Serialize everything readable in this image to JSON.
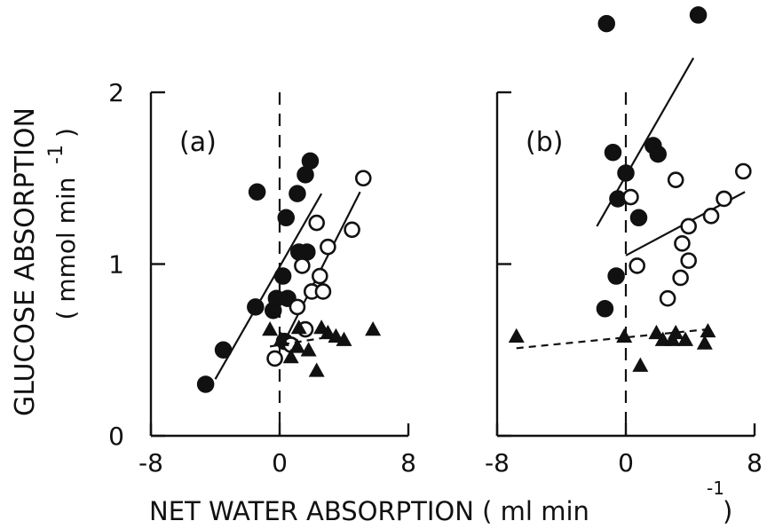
{
  "figure": {
    "ylabel_main": "GLUCOSE  ABSORPTION",
    "ylabel_unit": "( mmol  min",
    "ylabel_unit_close": ")",
    "ylabel_exp": "-1",
    "xlabel_main": "NET  WATER  ABSORPTION  ( ml  min",
    "xlabel_close": ")",
    "xlabel_exp": "-1",
    "yticks": [
      "0",
      "1",
      "2"
    ]
  },
  "chart_data": [
    {
      "type": "scatter",
      "panel_label": "(a)",
      "xlim": [
        -8,
        8
      ],
      "ylim": [
        0,
        2
      ],
      "x_ticks": [
        "-8",
        "0",
        "8"
      ],
      "y_ticks": [
        "0",
        "1",
        "2"
      ],
      "zero_line": true,
      "series": [
        {
          "marker": "filled-circle",
          "points": [
            [
              -4.6,
              0.3
            ],
            [
              -3.5,
              0.5
            ],
            [
              -1.5,
              0.75
            ],
            [
              -0.4,
              0.73
            ],
            [
              -0.2,
              0.8
            ],
            [
              0.5,
              0.8
            ],
            [
              0.2,
              0.93
            ],
            [
              1.2,
              1.07
            ],
            [
              1.7,
              1.07
            ],
            [
              0.4,
              1.27
            ],
            [
              1.1,
              1.41
            ],
            [
              1.6,
              1.52
            ],
            [
              1.9,
              1.6
            ],
            [
              -1.4,
              1.42
            ],
            [
              0.3,
              0.55
            ]
          ],
          "fit": [
            [
              -4.0,
              0.33
            ],
            [
              2.6,
              1.41
            ]
          ]
        },
        {
          "marker": "open-circle",
          "points": [
            [
              -0.3,
              0.45
            ],
            [
              0.7,
              0.53
            ],
            [
              1.1,
              0.75
            ],
            [
              1.6,
              0.62
            ],
            [
              2.0,
              0.84
            ],
            [
              2.5,
              0.93
            ],
            [
              2.7,
              0.84
            ],
            [
              1.4,
              0.99
            ],
            [
              3.0,
              1.1
            ],
            [
              2.3,
              1.24
            ],
            [
              4.5,
              1.2
            ],
            [
              5.2,
              1.5
            ]
          ],
          "fit": [
            [
              0.3,
              0.55
            ],
            [
              5.0,
              1.42
            ]
          ]
        },
        {
          "marker": "filled-triangle",
          "points": [
            [
              -0.6,
              0.62
            ],
            [
              0.1,
              0.56
            ],
            [
              0.7,
              0.46
            ],
            [
              1.1,
              0.52
            ],
            [
              1.8,
              0.5
            ],
            [
              2.6,
              0.63
            ],
            [
              3.0,
              0.6
            ],
            [
              2.3,
              0.38
            ],
            [
              3.5,
              0.58
            ],
            [
              4.0,
              0.56
            ],
            [
              5.8,
              0.62
            ],
            [
              1.2,
              0.63
            ]
          ],
          "fit": [
            [
              -0.6,
              0.52
            ],
            [
              4.0,
              0.59
            ]
          ]
        }
      ]
    },
    {
      "type": "scatter",
      "panel_label": "(b)",
      "xlim": [
        -8,
        8
      ],
      "ylim": [
        0,
        2
      ],
      "x_ticks": [
        "-8",
        "0",
        "8"
      ],
      "y_ticks": [
        "0",
        "1",
        "2"
      ],
      "zero_line": true,
      "series": [
        {
          "marker": "filled-circle",
          "points": [
            [
              -1.2,
              2.4
            ],
            [
              4.5,
              2.45
            ],
            [
              -0.8,
              1.65
            ],
            [
              0.0,
              1.53
            ],
            [
              1.7,
              1.69
            ],
            [
              2.0,
              1.64
            ],
            [
              -0.5,
              1.38
            ],
            [
              0.8,
              1.27
            ],
            [
              -0.6,
              0.93
            ],
            [
              -1.3,
              0.74
            ]
          ],
          "fit": [
            [
              -1.8,
              1.22
            ],
            [
              4.2,
              2.2
            ]
          ]
        },
        {
          "marker": "open-circle",
          "points": [
            [
              0.3,
              1.39
            ],
            [
              3.1,
              1.49
            ],
            [
              7.3,
              1.54
            ],
            [
              6.1,
              1.38
            ],
            [
              5.3,
              1.28
            ],
            [
              3.9,
              1.22
            ],
            [
              3.5,
              1.12
            ],
            [
              0.7,
              0.99
            ],
            [
              3.9,
              1.02
            ],
            [
              3.4,
              0.92
            ],
            [
              2.6,
              0.8
            ]
          ],
          "fit": [
            [
              0.0,
              1.05
            ],
            [
              7.4,
              1.42
            ]
          ]
        },
        {
          "marker": "filled-triangle",
          "points": [
            [
              -6.8,
              0.58
            ],
            [
              -0.1,
              0.58
            ],
            [
              0.9,
              0.41
            ],
            [
              2.3,
              0.56
            ],
            [
              2.9,
              0.56
            ],
            [
              3.1,
              0.6
            ],
            [
              3.7,
              0.56
            ],
            [
              4.9,
              0.54
            ],
            [
              5.1,
              0.61
            ],
            [
              1.9,
              0.6
            ]
          ],
          "fit": [
            [
              -6.8,
              0.51
            ],
            [
              5.1,
              0.62
            ]
          ]
        }
      ]
    }
  ]
}
